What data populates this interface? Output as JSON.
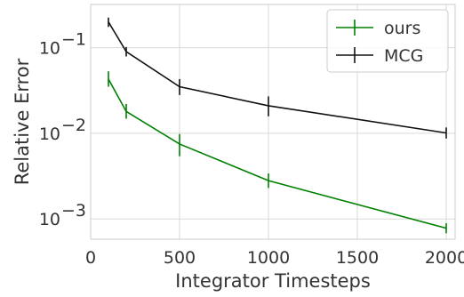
{
  "chart_data": {
    "type": "line",
    "xlabel": "Integrator Timesteps",
    "ylabel": "Relative Error",
    "xlim": [
      0,
      2050
    ],
    "ylim": [
      0.00058,
      0.32
    ],
    "yscale": "log",
    "grid": true,
    "legend_position": "top-right",
    "x_ticks": [
      {
        "value": 0,
        "label": "0"
      },
      {
        "value": 500,
        "label": "500"
      },
      {
        "value": 1000,
        "label": "1000"
      },
      {
        "value": 1500,
        "label": "1500"
      },
      {
        "value": 2000,
        "label": "2000"
      }
    ],
    "y_ticks": [
      {
        "value": 0.001,
        "base": "10",
        "exp": "−3"
      },
      {
        "value": 0.01,
        "base": "10",
        "exp": "−2"
      },
      {
        "value": 0.1,
        "base": "10",
        "exp": "−1"
      }
    ],
    "series": [
      {
        "name": "ours",
        "color": "#008000",
        "points": [
          {
            "x": 100,
            "y": 0.043,
            "lo": 0.035,
            "hi": 0.053
          },
          {
            "x": 200,
            "y": 0.018,
            "lo": 0.0148,
            "hi": 0.022
          },
          {
            "x": 500,
            "y": 0.0075,
            "lo": 0.0054,
            "hi": 0.0098
          },
          {
            "x": 1000,
            "y": 0.0028,
            "lo": 0.0023,
            "hi": 0.0034
          },
          {
            "x": 2000,
            "y": 0.00078,
            "lo": 0.00068,
            "hi": 0.00089
          }
        ]
      },
      {
        "name": "MCG",
        "color": "#111111",
        "points": [
          {
            "x": 100,
            "y": 0.2,
            "lo": 0.175,
            "hi": 0.225
          },
          {
            "x": 200,
            "y": 0.09,
            "lo": 0.079,
            "hi": 0.102
          },
          {
            "x": 500,
            "y": 0.035,
            "lo": 0.028,
            "hi": 0.043
          },
          {
            "x": 1000,
            "y": 0.021,
            "lo": 0.0158,
            "hi": 0.027
          },
          {
            "x": 2000,
            "y": 0.0101,
            "lo": 0.0087,
            "hi": 0.0117
          }
        ]
      }
    ]
  }
}
